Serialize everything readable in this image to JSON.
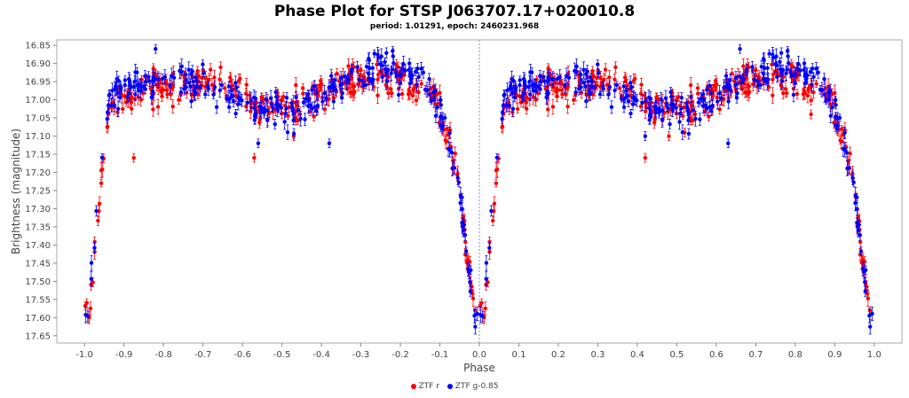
{
  "chart_data": {
    "type": "scatter",
    "title": "Phase Plot for STSP J063707.17+020010.8",
    "subtitle": "period: 1.01291, epoch: 2460231.968",
    "xlabel": "Phase",
    "ylabel": "Brightness (magnitude)",
    "xlim": [
      -1.07,
      1.07
    ],
    "ylim": [
      17.67,
      16.835
    ],
    "y_inverted": true,
    "x_ticks": [
      "-1.0",
      "-0.9",
      "-0.8",
      "-0.7",
      "-0.6",
      "-0.5",
      "-0.4",
      "-0.3",
      "-0.2",
      "-0.1",
      "0.0",
      "0.1",
      "0.2",
      "0.3",
      "0.4",
      "0.5",
      "0.6",
      "0.7",
      "0.8",
      "0.9",
      "1.0"
    ],
    "y_ticks": [
      "16.85",
      "16.90",
      "16.95",
      "17.00",
      "17.05",
      "17.10",
      "17.15",
      "17.20",
      "17.25",
      "17.30",
      "17.35",
      "17.40",
      "17.45",
      "17.50",
      "17.55",
      "17.60",
      "17.65"
    ],
    "grid": false,
    "reference_line_x": 0.0,
    "legend_position": "bottom",
    "series": [
      {
        "name": "ZTF r",
        "color": "#ff0000",
        "curve": [
          [
            0.0,
            17.6
          ],
          [
            0.01,
            17.57
          ],
          [
            0.02,
            17.5
          ],
          [
            0.03,
            17.38
          ],
          [
            0.04,
            17.25
          ],
          [
            0.05,
            17.13
          ],
          [
            0.06,
            17.05
          ],
          [
            0.08,
            17.01
          ],
          [
            0.1,
            16.99
          ],
          [
            0.15,
            16.97
          ],
          [
            0.2,
            16.965
          ],
          [
            0.25,
            16.955
          ],
          [
            0.3,
            16.95
          ],
          [
            0.35,
            16.965
          ],
          [
            0.4,
            16.985
          ],
          [
            0.45,
            17.01
          ],
          [
            0.5,
            17.02
          ],
          [
            0.55,
            17.01
          ],
          [
            0.6,
            16.985
          ],
          [
            0.65,
            16.96
          ],
          [
            0.7,
            16.945
          ],
          [
            0.75,
            16.94
          ],
          [
            0.8,
            16.945
          ],
          [
            0.85,
            16.965
          ],
          [
            0.88,
            16.99
          ],
          [
            0.9,
            17.03
          ],
          [
            0.92,
            17.1
          ],
          [
            0.94,
            17.2
          ],
          [
            0.96,
            17.35
          ],
          [
            0.97,
            17.45
          ],
          [
            0.98,
            17.53
          ],
          [
            0.99,
            17.58
          ],
          [
            1.0,
            17.6
          ]
        ],
        "scatter": 0.022,
        "count": 340,
        "outliers": [
          [
            -0.875,
            17.16
          ],
          [
            -0.57,
            17.16
          ],
          [
            -0.47,
            17.1
          ],
          [
            0.42,
            17.16
          ],
          [
            0.52,
            17.09
          ],
          [
            0.84,
            17.04
          ],
          [
            0.48,
            17.1
          ]
        ]
      },
      {
        "name": "ZTF g-0.85",
        "color": "#0000ff",
        "curve": [
          [
            0.0,
            17.61
          ],
          [
            0.01,
            17.58
          ],
          [
            0.02,
            17.48
          ],
          [
            0.03,
            17.33
          ],
          [
            0.04,
            17.2
          ],
          [
            0.05,
            17.08
          ],
          [
            0.06,
            17.01
          ],
          [
            0.08,
            16.98
          ],
          [
            0.1,
            16.965
          ],
          [
            0.15,
            16.955
          ],
          [
            0.2,
            16.95
          ],
          [
            0.25,
            16.95
          ],
          [
            0.3,
            16.955
          ],
          [
            0.35,
            16.975
          ],
          [
            0.4,
            16.995
          ],
          [
            0.45,
            17.02
          ],
          [
            0.5,
            17.03
          ],
          [
            0.55,
            17.02
          ],
          [
            0.6,
            16.99
          ],
          [
            0.65,
            16.955
          ],
          [
            0.7,
            16.925
          ],
          [
            0.75,
            16.915
          ],
          [
            0.8,
            16.92
          ],
          [
            0.85,
            16.945
          ],
          [
            0.88,
            16.975
          ],
          [
            0.9,
            17.02
          ],
          [
            0.92,
            17.09
          ],
          [
            0.94,
            17.19
          ],
          [
            0.96,
            17.33
          ],
          [
            0.97,
            17.44
          ],
          [
            0.98,
            17.52
          ],
          [
            0.99,
            17.58
          ],
          [
            1.0,
            17.61
          ]
        ],
        "scatter": 0.025,
        "count": 300,
        "outliers": [
          [
            -0.38,
            17.12
          ],
          [
            -0.56,
            17.12
          ],
          [
            0.63,
            17.12
          ],
          [
            -0.82,
            16.86
          ],
          [
            0.66,
            16.86
          ],
          [
            0.42,
            17.1
          ]
        ]
      }
    ]
  }
}
